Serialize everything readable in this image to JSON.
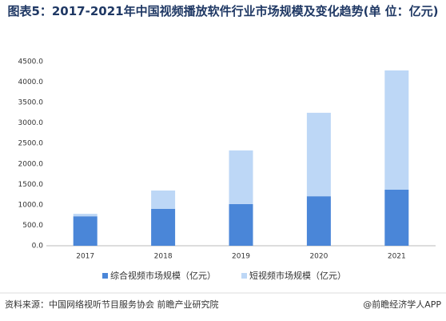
{
  "chart_data": {
    "type": "stacked-bar",
    "title": "图表5：2017-2021年中国视频播放软件行业市场规模及变化趋势(单 位：亿元)",
    "categories": [
      "2017",
      "2018",
      "2019",
      "2020",
      "2021"
    ],
    "series": [
      {
        "name": "综合视频市场规模（亿元）",
        "color": "#4a86d8",
        "values": [
          720,
          900,
          1020,
          1210,
          1370
        ]
      },
      {
        "name": "短视频市场规模（亿元）",
        "color": "#bdd7f6",
        "values": [
          60,
          450,
          1310,
          2040,
          2915
        ]
      }
    ],
    "ylim": [
      0,
      4500
    ],
    "yticks": [
      {
        "value": 0,
        "label": "0.0"
      },
      {
        "value": 500,
        "label": "500.0"
      },
      {
        "value": 1000,
        "label": "1000.0"
      },
      {
        "value": 1500,
        "label": "1500.0"
      },
      {
        "value": 2000,
        "label": "2000.0"
      },
      {
        "value": 2500,
        "label": "2500.0"
      },
      {
        "value": 3000,
        "label": "3000.0"
      },
      {
        "value": 3500,
        "label": "3500.0"
      },
      {
        "value": 4000,
        "label": "4000.0"
      },
      {
        "value": 4500,
        "label": "4500.0"
      }
    ],
    "grid": false,
    "legend": "bottom",
    "source": "资料来源：中国网络视听节目服务协会 前瞻产业研究院",
    "credit": "@前瞻经济学人APP"
  }
}
